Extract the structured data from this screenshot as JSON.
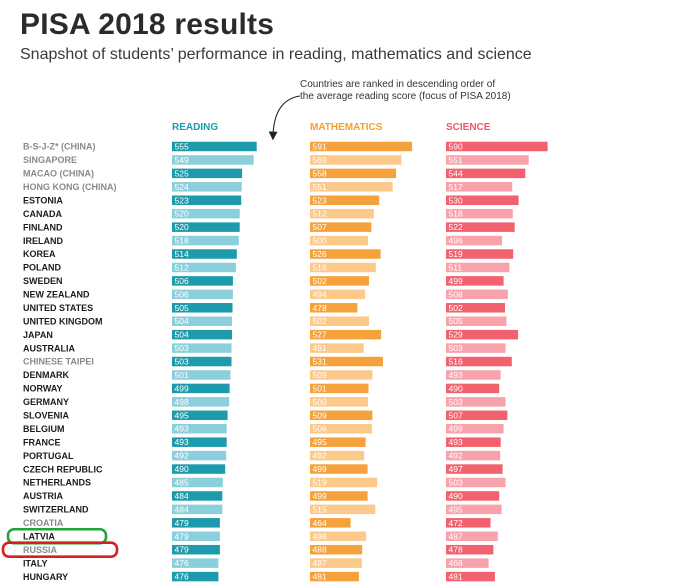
{
  "header": {
    "title": "PISA 2018 results",
    "subtitle": "Snapshot of students’ performance in reading, mathematics and science",
    "note_line1": "Countries are ranked in descending order of",
    "note_line2": "the average reading score (focus of PISA 2018)"
  },
  "colors": {
    "reading_dark": "#1d9aab",
    "reading_light": "#8ccfdc",
    "math_dark": "#f6a23c",
    "math_light": "#fdc98a",
    "science_dark": "#f2616e",
    "science_light": "#f8a3ab",
    "reading_head": "#1a9bb0",
    "math_head": "#f5a02c",
    "science_head": "#ee5868",
    "label_dark": "#1c1c1c",
    "label_gray": "#8a8a8a",
    "latvia_marker": "#22a434",
    "russia_marker": "#d81f1f"
  },
  "chart_data": {
    "type": "bar",
    "title": "PISA 2018 results",
    "subtitle": "Snapshot of students’ performance in reading, mathematics and science",
    "annotation": "Countries are ranked in descending order of the average reading score (focus of PISA 2018)",
    "orientation": "horizontal",
    "xlim": [
      380,
      595
    ],
    "categories": [
      "B-S-J-Z* (CHINA)",
      "SINGAPORE",
      "MACAO (CHINA)",
      "HONG KONG (CHINA)",
      "ESTONIA",
      "CANADA",
      "FINLAND",
      "IRELAND",
      "KOREA",
      "POLAND",
      "SWEDEN",
      "NEW ZEALAND",
      "UNITED STATES",
      "UNITED KINGDOM",
      "JAPAN",
      "AUSTRALIA",
      "CHINESE TAIPEI",
      "DENMARK",
      "NORWAY",
      "GERMANY",
      "SLOVENIA",
      "BELGIUM",
      "FRANCE",
      "PORTUGAL",
      "CZECH REPUBLIC",
      "NETHERLANDS",
      "AUSTRIA",
      "SWITZERLAND",
      "CROATIA",
      "LATVIA",
      "RUSSIA",
      "ITALY",
      "HUNGARY"
    ],
    "gray_labels": [
      true,
      true,
      true,
      true,
      false,
      false,
      false,
      false,
      false,
      false,
      false,
      false,
      false,
      false,
      false,
      false,
      true,
      false,
      false,
      false,
      false,
      false,
      false,
      false,
      false,
      false,
      false,
      false,
      true,
      false,
      true,
      false,
      false
    ],
    "series": [
      {
        "name": "READING",
        "values": [
          555,
          549,
          525,
          524,
          523,
          520,
          520,
          518,
          514,
          512,
          506,
          506,
          505,
          504,
          504,
          503,
          503,
          501,
          499,
          498,
          495,
          493,
          493,
          492,
          490,
          485,
          484,
          484,
          479,
          479,
          479,
          476,
          476
        ]
      },
      {
        "name": "MATHEMATICS",
        "values": [
          591,
          569,
          558,
          551,
          523,
          512,
          507,
          500,
          526,
          516,
          502,
          494,
          478,
          502,
          527,
          491,
          531,
          509,
          501,
          500,
          509,
          508,
          495,
          492,
          499,
          519,
          499,
          515,
          464,
          496,
          488,
          487,
          481
        ]
      },
      {
        "name": "SCIENCE",
        "values": [
          590,
          551,
          544,
          517,
          530,
          518,
          522,
          496,
          519,
          511,
          499,
          508,
          502,
          505,
          529,
          503,
          516,
          493,
          490,
          503,
          507,
          499,
          493,
          492,
          497,
          503,
          490,
          495,
          472,
          487,
          478,
          468,
          481
        ]
      }
    ],
    "highlighted": [
      "LATVIA",
      "RUSSIA"
    ]
  }
}
